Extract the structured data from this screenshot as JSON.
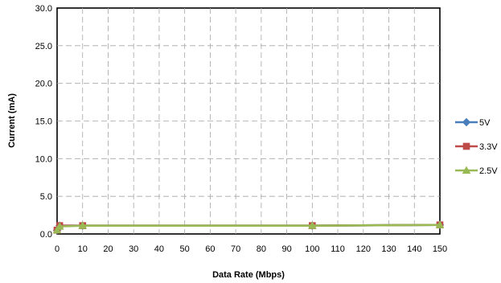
{
  "chart_data": {
    "type": "line",
    "title": "",
    "xlabel": "Data Rate (Mbps)",
    "ylabel": "Current (mA)",
    "xlim": [
      0,
      150
    ],
    "ylim": [
      0,
      30
    ],
    "x_ticks": [
      0,
      10,
      20,
      30,
      40,
      50,
      60,
      70,
      80,
      90,
      100,
      110,
      120,
      130,
      140,
      150
    ],
    "y_ticks": [
      0,
      5,
      10,
      15,
      20,
      25,
      30
    ],
    "x_tick_labels": [
      "0",
      "10",
      "20",
      "30",
      "40",
      "50",
      "60",
      "70",
      "80",
      "90",
      "100",
      "110",
      "120",
      "130",
      "140",
      "150"
    ],
    "y_tick_labels": [
      "0.0",
      "5.0",
      "10.0",
      "15.0",
      "20.0",
      "25.0",
      "30.0"
    ],
    "grid": true,
    "legend_position": "right",
    "series": [
      {
        "name": "5V",
        "marker": "diamond",
        "color": "#4a7ebb",
        "x": [
          0,
          1,
          10,
          100,
          150
        ],
        "y": [
          0.5,
          1.1,
          1.1,
          1.1,
          1.2
        ]
      },
      {
        "name": "3.3V",
        "marker": "square",
        "color": "#be4b48",
        "x": [
          0,
          1,
          10,
          100,
          150
        ],
        "y": [
          0.5,
          1.1,
          1.1,
          1.1,
          1.2
        ]
      },
      {
        "name": "2.5V",
        "marker": "triangle",
        "color": "#98b954",
        "x": [
          0,
          1,
          10,
          100,
          150
        ],
        "y": [
          0.5,
          1.0,
          1.1,
          1.1,
          1.2
        ]
      }
    ]
  }
}
